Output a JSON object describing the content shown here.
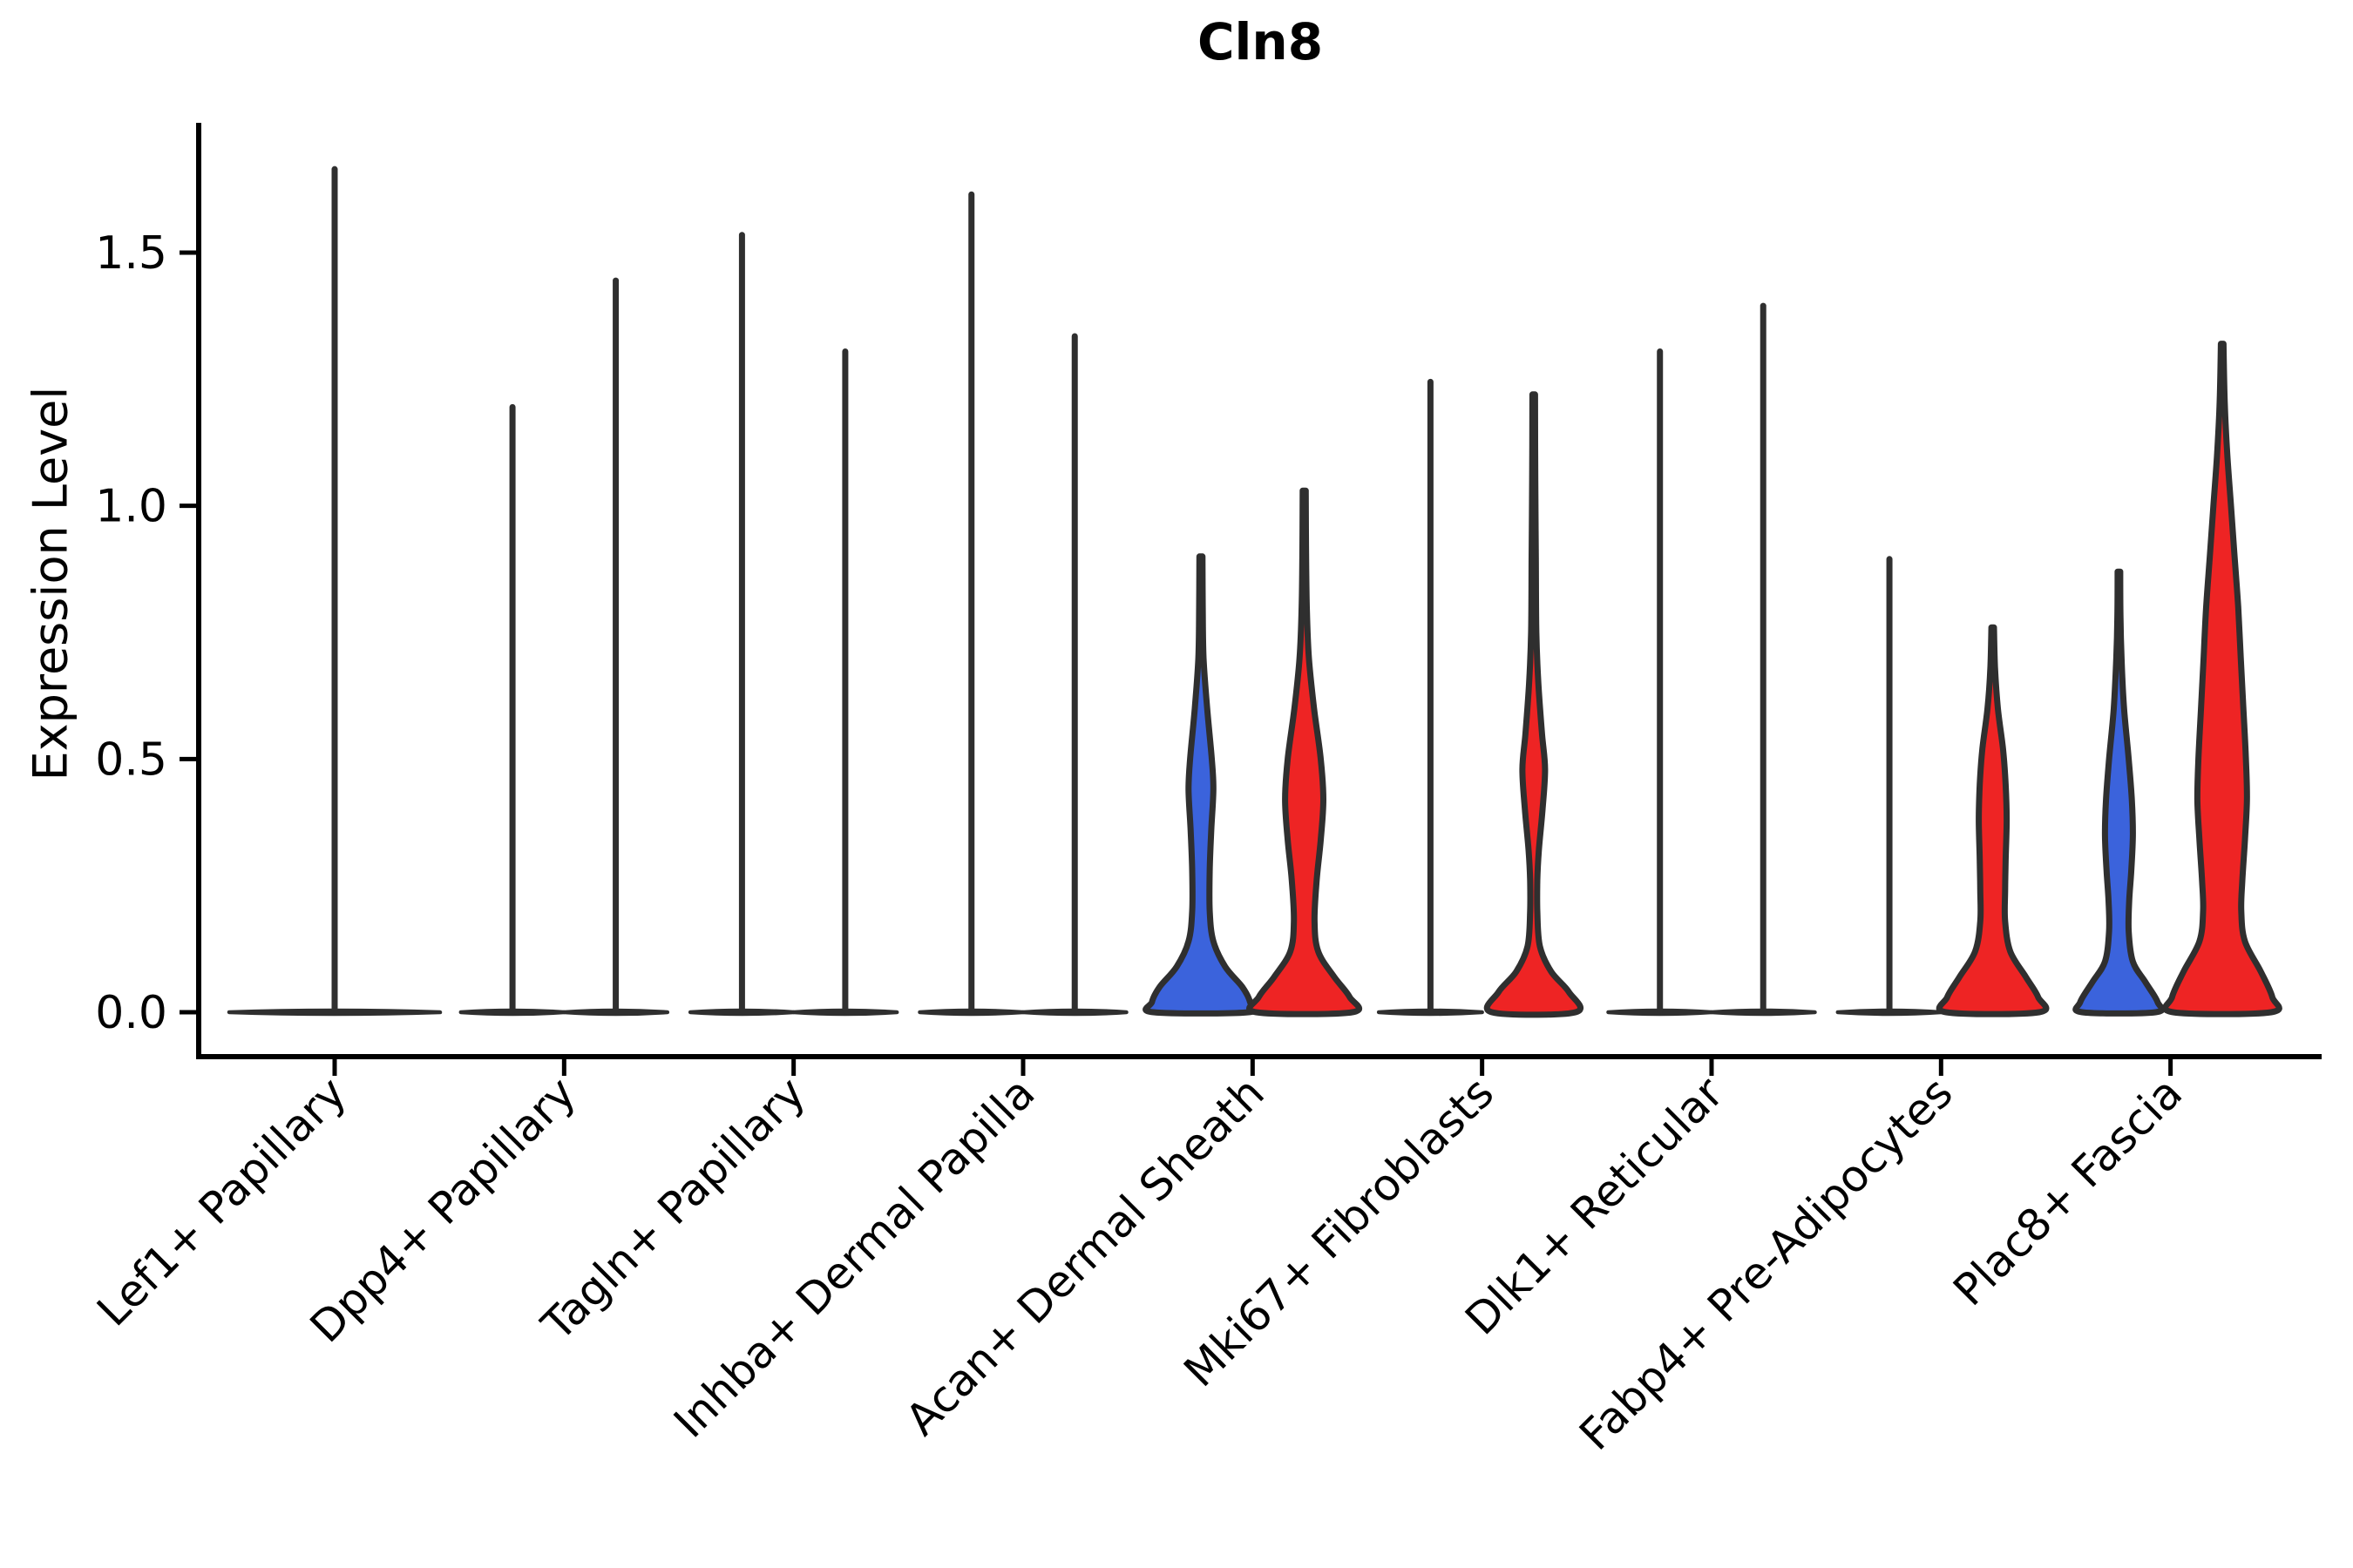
{
  "title": "Cln8",
  "palette": {
    "background": "#FFFFFF",
    "blue_fill": "#3B63DC",
    "red_fill": "#EE2424",
    "outline": "#2F2F2F",
    "axis": "#000000"
  },
  "chart_data": {
    "type": "violin",
    "title": "Cln8",
    "ylabel": "Expression Level",
    "xlabel": "",
    "ylim": [
      -0.09,
      1.76
    ],
    "y_ticks": [
      0.0,
      0.5,
      1.0,
      1.5
    ],
    "y_tick_labels": [
      "0.0",
      "0.5",
      "1.0",
      "1.5"
    ],
    "grid": "off",
    "legend_position": "none",
    "x_tick_rotation_deg": 45,
    "groups": [
      {
        "side": "left",
        "fill": "blue"
      },
      {
        "side": "right",
        "fill": "red"
      }
    ],
    "categories": [
      "Lef1+ Papillary",
      "Dpp4+ Papillary",
      "Tagln+ Papillary",
      "Inhba+ Dermal Papilla",
      "Acan+ Dermal Sheath",
      "Mki67+ Fibroblasts",
      "Dlk1+ Reticular",
      "Fabp4+ Pre-Adipocytes",
      "Plac8+ Fascia"
    ],
    "violins": [
      {
        "category": "Lef1+ Papillary",
        "side": "center",
        "fill": "none",
        "shape": "flat_spike",
        "max_expression": 1.67
      },
      {
        "category": "Dpp4+ Papillary",
        "side": "left",
        "fill": "none",
        "shape": "flat_spike",
        "max_expression": 1.2
      },
      {
        "category": "Dpp4+ Papillary",
        "side": "right",
        "fill": "none",
        "shape": "flat_spike",
        "max_expression": 1.45
      },
      {
        "category": "Tagln+ Papillary",
        "side": "left",
        "fill": "none",
        "shape": "flat_spike",
        "max_expression": 1.54
      },
      {
        "category": "Tagln+ Papillary",
        "side": "right",
        "fill": "none",
        "shape": "flat_spike",
        "max_expression": 1.31
      },
      {
        "category": "Inhba+ Dermal Papilla",
        "side": "left",
        "fill": "none",
        "shape": "flat_spike",
        "max_expression": 1.62
      },
      {
        "category": "Inhba+ Dermal Papilla",
        "side": "right",
        "fill": "none",
        "shape": "flat_spike",
        "max_expression": 1.34
      },
      {
        "category": "Acan+ Dermal Sheath",
        "side": "left",
        "fill": "blue",
        "shape": "filled_body",
        "max_expression": 0.9,
        "profile": [
          [
            0.9,
            0.03
          ],
          [
            0.8,
            0.035
          ],
          [
            0.7,
            0.05
          ],
          [
            0.6,
            0.12
          ],
          [
            0.5,
            0.21
          ],
          [
            0.44,
            0.24
          ],
          [
            0.36,
            0.2
          ],
          [
            0.28,
            0.17
          ],
          [
            0.2,
            0.17
          ],
          [
            0.14,
            0.24
          ],
          [
            0.09,
            0.47
          ],
          [
            0.05,
            0.8
          ],
          [
            0.02,
            0.95
          ],
          [
            0,
            0.92
          ]
        ]
      },
      {
        "category": "Acan+ Dermal Sheath",
        "side": "right",
        "fill": "red",
        "shape": "filled_body",
        "max_expression": 1.03,
        "profile": [
          [
            1.03,
            0.03
          ],
          [
            0.92,
            0.035
          ],
          [
            0.8,
            0.05
          ],
          [
            0.7,
            0.09
          ],
          [
            0.6,
            0.19
          ],
          [
            0.5,
            0.32
          ],
          [
            0.42,
            0.37
          ],
          [
            0.34,
            0.32
          ],
          [
            0.26,
            0.24
          ],
          [
            0.18,
            0.2
          ],
          [
            0.12,
            0.27
          ],
          [
            0.07,
            0.58
          ],
          [
            0.03,
            0.88
          ],
          [
            0,
            0.93
          ]
        ]
      },
      {
        "category": "Mki67+ Fibroblasts",
        "side": "left",
        "fill": "none",
        "shape": "flat_spike",
        "max_expression": 1.25
      },
      {
        "category": "Mki67+ Fibroblasts",
        "side": "right",
        "fill": "red",
        "shape": "filled_body",
        "max_expression": 1.22,
        "profile": [
          [
            1.22,
            0.025
          ],
          [
            1.05,
            0.03
          ],
          [
            0.9,
            0.04
          ],
          [
            0.75,
            0.05
          ],
          [
            0.65,
            0.09
          ],
          [
            0.55,
            0.16
          ],
          [
            0.48,
            0.22
          ],
          [
            0.4,
            0.17
          ],
          [
            0.32,
            0.1
          ],
          [
            0.26,
            0.07
          ],
          [
            0.2,
            0.07
          ],
          [
            0.13,
            0.12
          ],
          [
            0.08,
            0.34
          ],
          [
            0.04,
            0.68
          ],
          [
            0,
            0.81
          ]
        ]
      },
      {
        "category": "Dlk1+ Reticular",
        "side": "left",
        "fill": "none",
        "shape": "flat_spike",
        "max_expression": 1.31
      },
      {
        "category": "Dlk1+ Reticular",
        "side": "right",
        "fill": "none",
        "shape": "flat_spike",
        "max_expression": 1.4
      },
      {
        "category": "Fabp4+ Pre-Adipocytes",
        "side": "left",
        "fill": "none",
        "shape": "flat_spike",
        "max_expression": 0.9
      },
      {
        "category": "Fabp4+ Pre-Adipocytes",
        "side": "right",
        "fill": "red",
        "shape": "filled_body",
        "max_expression": 0.76,
        "profile": [
          [
            0.76,
            0.025
          ],
          [
            0.68,
            0.045
          ],
          [
            0.6,
            0.1
          ],
          [
            0.52,
            0.2
          ],
          [
            0.45,
            0.25
          ],
          [
            0.38,
            0.27
          ],
          [
            0.3,
            0.25
          ],
          [
            0.24,
            0.24
          ],
          [
            0.18,
            0.24
          ],
          [
            0.12,
            0.34
          ],
          [
            0.07,
            0.64
          ],
          [
            0.03,
            0.88
          ],
          [
            0,
            0.9
          ]
        ]
      },
      {
        "category": "Plac8+ Fascia",
        "side": "left",
        "fill": "blue",
        "shape": "filled_body",
        "max_expression": 0.87,
        "profile": [
          [
            0.87,
            0.025
          ],
          [
            0.78,
            0.03
          ],
          [
            0.7,
            0.05
          ],
          [
            0.6,
            0.1
          ],
          [
            0.5,
            0.19
          ],
          [
            0.42,
            0.25
          ],
          [
            0.35,
            0.27
          ],
          [
            0.28,
            0.24
          ],
          [
            0.22,
            0.2
          ],
          [
            0.16,
            0.19
          ],
          [
            0.1,
            0.27
          ],
          [
            0.06,
            0.51
          ],
          [
            0.02,
            0.75
          ],
          [
            0,
            0.71
          ]
        ]
      },
      {
        "category": "Plac8+ Fascia",
        "side": "right",
        "fill": "red",
        "shape": "filled_body",
        "max_expression": 1.32,
        "profile": [
          [
            1.32,
            0.025
          ],
          [
            1.2,
            0.05
          ],
          [
            1.1,
            0.1
          ],
          [
            1.0,
            0.17
          ],
          [
            0.9,
            0.24
          ],
          [
            0.8,
            0.31
          ],
          [
            0.7,
            0.36
          ],
          [
            0.6,
            0.41
          ],
          [
            0.5,
            0.46
          ],
          [
            0.42,
            0.48
          ],
          [
            0.34,
            0.44
          ],
          [
            0.26,
            0.39
          ],
          [
            0.2,
            0.37
          ],
          [
            0.14,
            0.44
          ],
          [
            0.08,
            0.75
          ],
          [
            0.03,
            0.97
          ],
          [
            0,
            0.95
          ]
        ]
      }
    ]
  }
}
